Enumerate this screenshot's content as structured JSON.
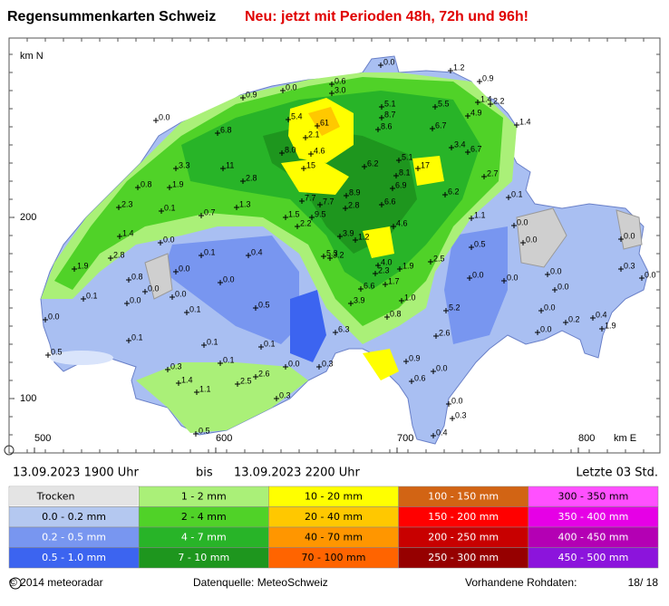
{
  "header": {
    "title": "Regensummenkarten Schweiz",
    "notice": "Neu: jetzt mit Perioden 48h, 72h und 96h!"
  },
  "map": {
    "north_label": "km N",
    "east_label": "km E",
    "y_ticks": [
      "200",
      "100"
    ],
    "x_ticks": [
      "500",
      "600",
      "700",
      "800"
    ],
    "stations": [
      "0.0",
      "1.2",
      "0.9",
      "0.0",
      "0.6",
      "3.0",
      "0.9",
      "5.1",
      "5.5",
      "1.4",
      "2.2",
      "4.9",
      "1.4",
      "0.0",
      "5.4",
      "61",
      "8.7",
      "8.6",
      "2.1",
      "6.7",
      "6.8",
      "6.7",
      "3.4",
      "8.0",
      "4.6",
      "6.2",
      "5.1",
      "17",
      "3.3",
      "11",
      "15",
      "8.1",
      "2.7",
      "0.8",
      "1.9",
      "2.8",
      "6.9",
      "8.9",
      "6.2",
      "0.1",
      "2.3",
      "0.1",
      "1.3",
      "7.7",
      "7.7",
      "2.8",
      "6.6",
      "0.7",
      "1.5",
      "9.5",
      "1.1",
      "0.0",
      "4.6",
      "2.2",
      "1.2",
      "3.9",
      "1.4",
      "0.0",
      "0.0",
      "0.0",
      "0.1",
      "0.4",
      "0.5",
      "2.8",
      "5.3",
      "3.2",
      "2.5",
      "0.0",
      "4.0",
      "2.3",
      "1.9",
      "1.9",
      "0.0",
      "0.0",
      "0.3",
      "0.0",
      "0.8",
      "0.0",
      "1.7",
      "0.0",
      "0.0",
      "6.6",
      "0.0",
      "0.1",
      "0.0",
      "1.0",
      "3.9",
      "0.0",
      "0.1",
      "0.5",
      "5.2",
      "0.0",
      "0.4",
      "0.0",
      "0.8",
      "0.2",
      "1.9",
      "6.3",
      "2.6",
      "0.0",
      "0.1",
      "0.1",
      "0.1",
      "0.5",
      "0.9",
      "0.1",
      "0.3",
      "0.0",
      "0.3",
      "0.0",
      "0.6",
      "2.6",
      "2.5",
      "1.4",
      "1.1",
      "0.3",
      "0.0",
      "0.3",
      "0.5",
      "0.4"
    ]
  },
  "time_range": {
    "from": "13.09.2023 1900 Uhr",
    "separator": "bis",
    "to": "13.09.2023 2200 Uhr",
    "period": "Letzte 03 Std."
  },
  "legend": [
    [
      "Trocken",
      "1 - 2 mm",
      "10 - 20 mm",
      "100 - 150 mm",
      "300 - 350 mm"
    ],
    [
      "0.0 - 0.2 mm",
      "2 - 4 mm",
      "20 - 40 mm",
      "150 - 200 mm",
      "350 - 400 mm"
    ],
    [
      "0.2 - 0.5 mm",
      "4 - 7 mm",
      "40 - 70 mm",
      "200 - 250 mm",
      "400 - 450 mm"
    ],
    [
      "0.5 - 1.0 mm",
      "7 - 10 mm",
      "70 - 100 mm",
      "250 - 300 mm",
      "450 - 500 mm"
    ]
  ],
  "footer": {
    "copyright": "© 2014 meteoradar",
    "source": "Datenquelle: MeteoSchweiz",
    "raw_label": "Vorhandene Rohdaten:",
    "raw_value": "18/ 18"
  }
}
